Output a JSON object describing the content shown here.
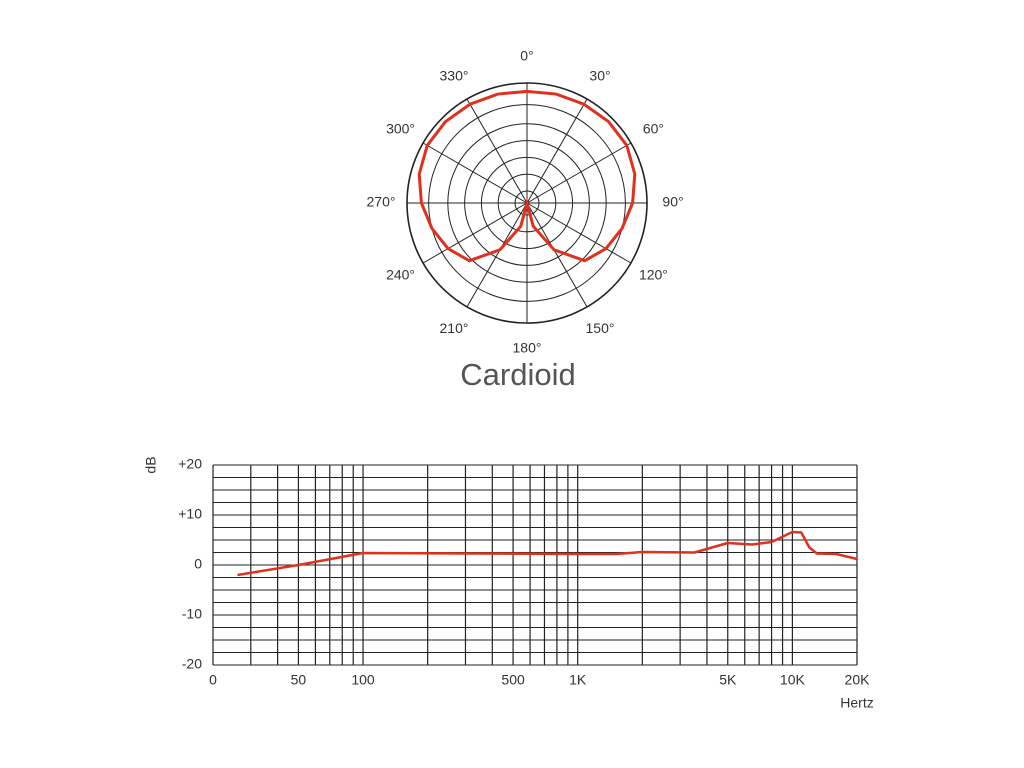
{
  "chart_data": [
    {
      "type": "polar",
      "title": "Cardioid",
      "color": "#e0301e",
      "x": [
        0,
        15,
        30,
        45,
        60,
        75,
        90,
        105,
        120,
        135,
        150,
        165,
        180,
        195,
        210,
        225,
        240,
        255,
        270,
        285,
        300,
        315,
        330,
        345
      ],
      "values": [
        0.93,
        0.94,
        0.95,
        0.96,
        0.96,
        0.93,
        0.88,
        0.82,
        0.76,
        0.68,
        0.45,
        0.2,
        0,
        0.2,
        0.45,
        0.68,
        0.76,
        0.82,
        0.88,
        0.93,
        0.96,
        0.96,
        0.95,
        0.94
      ],
      "rlim": [
        0,
        1
      ],
      "rticks": [
        0.1,
        0.24,
        0.38,
        0.52,
        0.66,
        0.82,
        1
      ],
      "xticks": [
        {
          "value": 0,
          "label": "0°"
        },
        {
          "value": 30,
          "label": "30°"
        },
        {
          "value": 60,
          "label": "60°"
        },
        {
          "value": 90,
          "label": "90°"
        },
        {
          "value": 120,
          "label": "120°"
        },
        {
          "value": 150,
          "label": "150°"
        },
        {
          "value": 180,
          "label": "180°"
        },
        {
          "value": 210,
          "label": "210°"
        },
        {
          "value": 240,
          "label": "240°"
        },
        {
          "value": 270,
          "label": "270°"
        },
        {
          "value": 300,
          "label": "300°"
        },
        {
          "value": 330,
          "label": "330°"
        }
      ]
    },
    {
      "type": "line",
      "color": "#e0301e",
      "xlabel": "Hertz",
      "ylabel": "dB",
      "xscale": "log",
      "x": [
        26,
        50,
        100,
        1000,
        1500,
        2000,
        3500,
        5000,
        6500,
        8000,
        10000,
        11000,
        12000,
        13000,
        16000,
        20000
      ],
      "values": [
        -2,
        0,
        2.4,
        2.2,
        2.2,
        2.6,
        2.5,
        4.4,
        4.1,
        4.6,
        6.6,
        6.5,
        3.5,
        2.3,
        2.2,
        1.2
      ],
      "xlim": [
        20,
        20000
      ],
      "ylim": [
        -20,
        20
      ],
      "xticks": [
        {
          "value": 20,
          "label": "0"
        },
        50,
        100,
        500,
        {
          "value": 1000,
          "label": "1K"
        },
        {
          "value": 5000,
          "label": "5K"
        },
        {
          "value": 10000,
          "label": "10K"
        },
        {
          "value": 20000,
          "label": "20K"
        }
      ],
      "yticks": [
        {
          "value": 20,
          "label": "+20"
        },
        {
          "value": 10,
          "label": "+10"
        },
        0,
        -10,
        -20
      ],
      "xgridlines": [
        20,
        30,
        40,
        50,
        60,
        70,
        80,
        90,
        100,
        200,
        300,
        400,
        500,
        600,
        700,
        800,
        900,
        1000,
        2000,
        3000,
        4000,
        5000,
        6000,
        7000,
        8000,
        9000,
        10000,
        20000
      ],
      "ygridlines": [
        -20,
        -17.5,
        -15,
        -12.5,
        -10,
        -7.5,
        -5,
        -2.5,
        0,
        2.5,
        5,
        7.5,
        10,
        12.5,
        15,
        17.5,
        20
      ]
    }
  ]
}
